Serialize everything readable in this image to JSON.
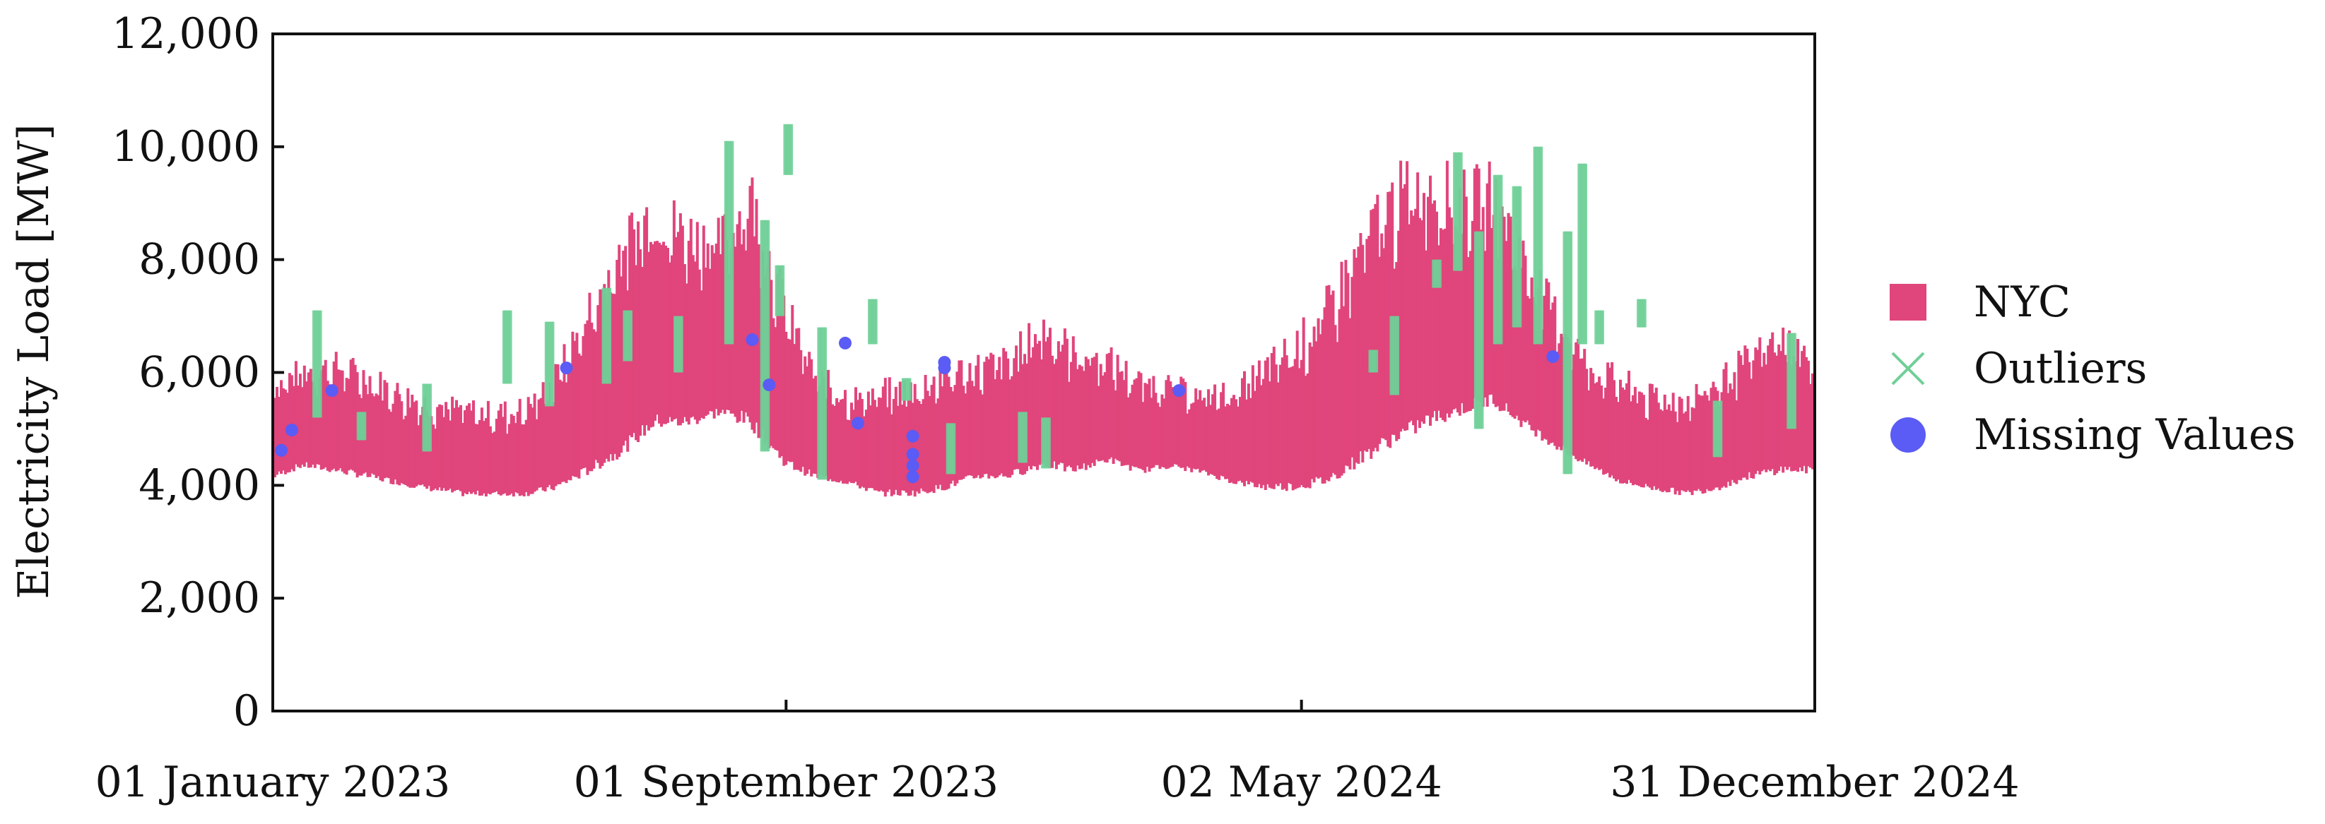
{
  "chart_data": {
    "type": "line",
    "title": "",
    "xlabel": "",
    "ylabel": "Electricity Load [MW]",
    "ylim": [
      0,
      12000
    ],
    "yticks": [
      0,
      2000,
      4000,
      6000,
      8000,
      10000,
      12000
    ],
    "ytick_labels": [
      "0",
      "2,000",
      "4,000",
      "6,000",
      "8,000",
      "10,000",
      "12,000"
    ],
    "xlim": [
      "2023-01-01",
      "2024-12-31"
    ],
    "xticks": [
      "2023-01-01",
      "2023-09-01",
      "2024-05-02",
      "2024-12-31"
    ],
    "xtick_labels": [
      "01 January 2023",
      "01 September 2023",
      "02 May 2024",
      "31 December 2024"
    ],
    "grid": false,
    "legend": {
      "position": "right",
      "entries": [
        {
          "label": "NYC",
          "marker": "square",
          "color": "#e0457b"
        },
        {
          "label": "Outliers",
          "marker": "x",
          "color": "#6fcf97"
        },
        {
          "label": "Missing Values",
          "marker": "circle",
          "color": "#5b5bf5"
        }
      ]
    },
    "series": [
      {
        "name": "NYC",
        "color": "#e0457b",
        "envelope": {
          "x": [
            "2023-01-01",
            "2023-01-15",
            "2023-02-01",
            "2023-02-15",
            "2023-03-01",
            "2023-03-15",
            "2023-04-01",
            "2023-04-15",
            "2023-05-01",
            "2023-05-15",
            "2023-06-01",
            "2023-06-15",
            "2023-07-01",
            "2023-07-15",
            "2023-08-01",
            "2023-08-15",
            "2023-09-01",
            "2023-09-15",
            "2023-10-01",
            "2023-10-15",
            "2023-11-01",
            "2023-11-15",
            "2023-12-01",
            "2023-12-15",
            "2024-01-01",
            "2024-01-15",
            "2024-02-01",
            "2024-02-15",
            "2024-03-01",
            "2024-03-15",
            "2024-04-01",
            "2024-04-15",
            "2024-05-01",
            "2024-05-15",
            "2024-06-01",
            "2024-06-15",
            "2024-07-01",
            "2024-07-15",
            "2024-08-01",
            "2024-08-15",
            "2024-09-01",
            "2024-09-15",
            "2024-10-01",
            "2024-10-15",
            "2024-11-01",
            "2024-11-15",
            "2024-12-01",
            "2024-12-15",
            "2024-12-31"
          ],
          "low": [
            4100,
            4300,
            4200,
            4100,
            4000,
            3900,
            3800,
            3800,
            3800,
            3900,
            4200,
            4500,
            5000,
            5000,
            5200,
            5000,
            4300,
            4100,
            4000,
            3800,
            3800,
            3900,
            4100,
            4100,
            4300,
            4200,
            4400,
            4200,
            4300,
            4200,
            4000,
            3900,
            3900,
            4000,
            4400,
            4700,
            5000,
            5200,
            5400,
            5000,
            4600,
            4300,
            4000,
            3900,
            3800,
            3900,
            4100,
            4200,
            4200
          ],
          "high": [
            6000,
            6300,
            6400,
            6200,
            5900,
            5700,
            5600,
            5500,
            5600,
            6200,
            7600,
            8800,
            9500,
            9000,
            8800,
            9800,
            7500,
            6200,
            5800,
            5900,
            6000,
            6300,
            6400,
            6500,
            7200,
            6700,
            6500,
            6100,
            6000,
            5800,
            5900,
            6400,
            6900,
            7600,
            9000,
            9700,
            10100,
            9600,
            9800,
            8500,
            7300,
            6400,
            6100,
            5800,
            5800,
            6100,
            6600,
            7000,
            6500
          ]
        }
      },
      {
        "name": "Outliers",
        "color": "#6fcf97",
        "segments": [
          {
            "date": "2023-01-22",
            "low": 5200,
            "high": 7100
          },
          {
            "date": "2023-02-12",
            "low": 4800,
            "high": 5300
          },
          {
            "date": "2023-03-15",
            "low": 4600,
            "high": 5800
          },
          {
            "date": "2023-04-22",
            "low": 5800,
            "high": 7100
          },
          {
            "date": "2023-05-12",
            "low": 5400,
            "high": 6900
          },
          {
            "date": "2023-06-08",
            "low": 5800,
            "high": 7500
          },
          {
            "date": "2023-06-18",
            "low": 6200,
            "high": 7100
          },
          {
            "date": "2023-07-12",
            "low": 6000,
            "high": 7000
          },
          {
            "date": "2023-08-05",
            "low": 6500,
            "high": 10100
          },
          {
            "date": "2023-08-22",
            "low": 4600,
            "high": 8700
          },
          {
            "date": "2023-08-29",
            "low": 7000,
            "high": 7900
          },
          {
            "date": "2023-09-02",
            "low": 9500,
            "high": 10400
          },
          {
            "date": "2023-09-18",
            "low": 4100,
            "high": 6800
          },
          {
            "date": "2023-10-12",
            "low": 6500,
            "high": 7300
          },
          {
            "date": "2023-10-28",
            "low": 5500,
            "high": 5900
          },
          {
            "date": "2023-11-18",
            "low": 4200,
            "high": 5100
          },
          {
            "date": "2023-12-22",
            "low": 4400,
            "high": 5300
          },
          {
            "date": "2024-01-02",
            "low": 4300,
            "high": 5200
          },
          {
            "date": "2024-06-05",
            "low": 6000,
            "high": 6400
          },
          {
            "date": "2024-06-15",
            "low": 5600,
            "high": 7000
          },
          {
            "date": "2024-07-05",
            "low": 7500,
            "high": 8000
          },
          {
            "date": "2024-07-15",
            "low": 7800,
            "high": 9900
          },
          {
            "date": "2024-07-25",
            "low": 5000,
            "high": 8500
          },
          {
            "date": "2024-08-03",
            "low": 6500,
            "high": 9500
          },
          {
            "date": "2024-08-12",
            "low": 6800,
            "high": 9300
          },
          {
            "date": "2024-08-22",
            "low": 6500,
            "high": 10000
          },
          {
            "date": "2024-09-05",
            "low": 4200,
            "high": 8500
          },
          {
            "date": "2024-09-12",
            "low": 6500,
            "high": 9700
          },
          {
            "date": "2024-09-20",
            "low": 6500,
            "high": 7100
          },
          {
            "date": "2024-10-10",
            "low": 6800,
            "high": 7300
          },
          {
            "date": "2024-11-15",
            "low": 4500,
            "high": 5500
          },
          {
            "date": "2024-12-20",
            "low": 5000,
            "high": 6700
          }
        ]
      },
      {
        "name": "Missing Values",
        "color": "#5b5bf5",
        "points": [
          {
            "x": "2023-01-05",
            "y": 4620
          },
          {
            "x": "2023-01-10",
            "y": 4980
          },
          {
            "x": "2023-01-29",
            "y": 5680
          },
          {
            "x": "2023-05-20",
            "y": 6080
          },
          {
            "x": "2023-08-16",
            "y": 6580
          },
          {
            "x": "2023-08-24",
            "y": 5780
          },
          {
            "x": "2023-09-29",
            "y": 6520
          },
          {
            "x": "2023-10-05",
            "y": 5100
          },
          {
            "x": "2023-10-31",
            "y": 4870
          },
          {
            "x": "2023-10-31",
            "y": 4550
          },
          {
            "x": "2023-10-31",
            "y": 4350
          },
          {
            "x": "2023-10-31",
            "y": 4150
          },
          {
            "x": "2023-11-15",
            "y": 6180
          },
          {
            "x": "2023-11-15",
            "y": 6080
          },
          {
            "x": "2024-03-05",
            "y": 5680
          },
          {
            "x": "2024-08-29",
            "y": 6280
          }
        ]
      }
    ]
  }
}
